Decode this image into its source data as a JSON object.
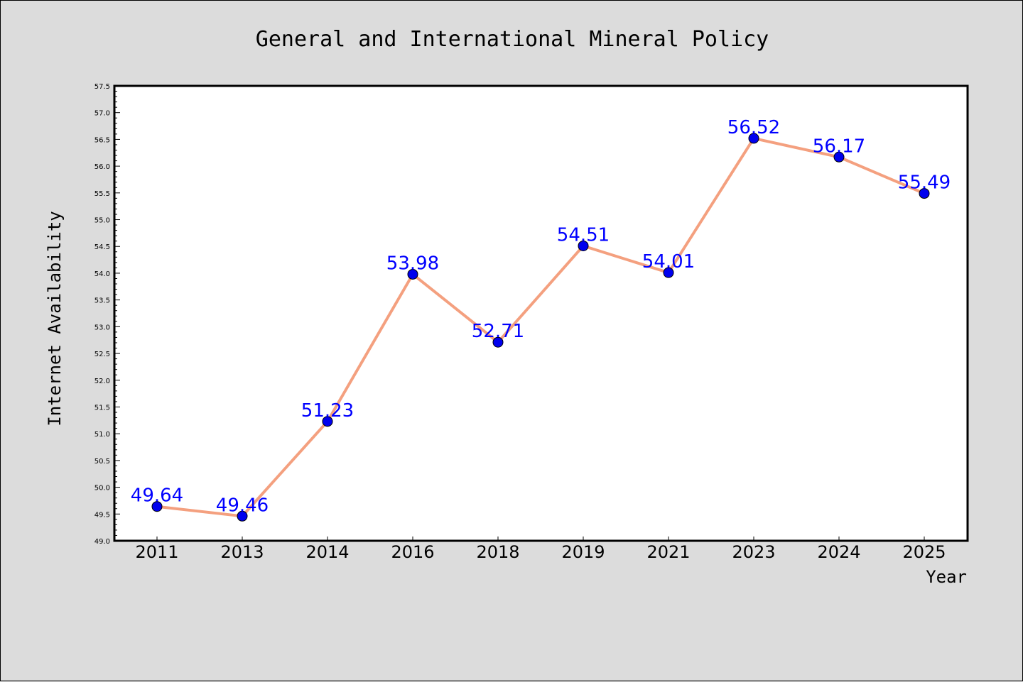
{
  "chart_data": {
    "type": "line",
    "title": "General and International Mineral Policy",
    "xlabel": "Year",
    "ylabel": "Internet Availability",
    "categories": [
      "2011",
      "2013",
      "2014",
      "2016",
      "2018",
      "2019",
      "2021",
      "2023",
      "2024",
      "2025"
    ],
    "values": [
      49.64,
      49.46,
      51.23,
      53.98,
      52.71,
      54.51,
      54.01,
      56.52,
      56.17,
      55.49
    ],
    "data_labels": [
      "49.64",
      "49.46",
      "51.23",
      "53.98",
      "52.71",
      "54.51",
      "54.01",
      "56.52",
      "56.17",
      "55.49"
    ],
    "ylim": [
      49.0,
      57.5
    ],
    "yticks": [
      "49.0",
      "49.5",
      "50.0",
      "50.5",
      "51.0",
      "51.5",
      "52.0",
      "52.5",
      "53.0",
      "53.5",
      "54.0",
      "54.5",
      "55.0",
      "55.5",
      "56.0",
      "56.5",
      "57.0",
      "57.5"
    ],
    "grid": false,
    "line_color": "#f4a07f",
    "marker_color": "#0000ee",
    "label_color": "#0000ff",
    "plot_background": "#ffffff",
    "figure_background": "#dcdcdc"
  }
}
